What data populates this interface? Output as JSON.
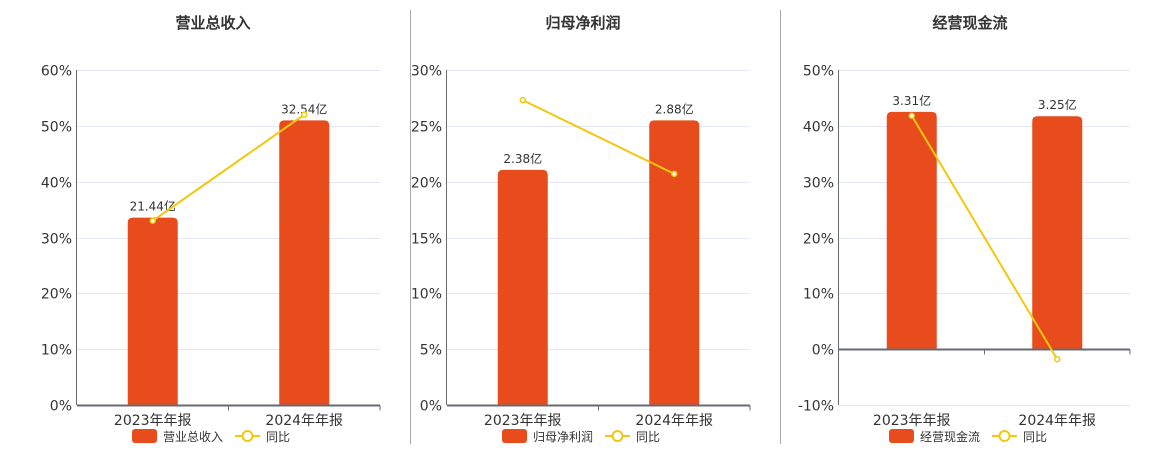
{
  "colors": {
    "bar": "#e84c1c",
    "line": "#f2c80f",
    "grid": "#e3e8f2",
    "axis": "#666a73",
    "text": "#333333",
    "divider": "#aaaaaa"
  },
  "chart_data": [
    {
      "type": "bar+line",
      "title": "营业总收入",
      "categories": [
        "2023年年报",
        "2024年年报"
      ],
      "bar_series": {
        "name": "营业总收入",
        "values": [
          21.44,
          32.54
        ],
        "labels": [
          "21.44亿",
          "32.54亿"
        ],
        "unit": "亿"
      },
      "line_series": {
        "name": "同比",
        "values": [
          33.0,
          52.0
        ],
        "unit": "%"
      },
      "ylim": [
        0,
        60
      ],
      "yticks": [
        "0%",
        "10%",
        "20%",
        "30%",
        "40%",
        "50%",
        "60%"
      ],
      "grid": true,
      "legend": "bottom"
    },
    {
      "type": "bar+line",
      "title": "归母净利润",
      "categories": [
        "2023年年报",
        "2024年年报"
      ],
      "bar_series": {
        "name": "归母净利润",
        "values": [
          2.38,
          2.88
        ],
        "labels": [
          "2.38亿",
          "2.88亿"
        ],
        "unit": "亿"
      },
      "line_series": {
        "name": "同比",
        "values": [
          27.3,
          20.7
        ],
        "unit": "%"
      },
      "ylim": [
        0,
        30
      ],
      "yticks": [
        "0%",
        "5%",
        "10%",
        "15%",
        "20%",
        "25%",
        "30%"
      ],
      "grid": true,
      "legend": "bottom"
    },
    {
      "type": "bar+line",
      "title": "经营现金流",
      "categories": [
        "2023年年报",
        "2024年年报"
      ],
      "bar_series": {
        "name": "经营现金流",
        "values": [
          3.31,
          3.25
        ],
        "labels": [
          "3.31亿",
          "3.25亿"
        ],
        "unit": "亿"
      },
      "line_series": {
        "name": "同比",
        "values": [
          41.8,
          -1.8
        ],
        "unit": "%"
      },
      "ylim": [
        -10,
        50
      ],
      "yticks": [
        "-10%",
        "0%",
        "10%",
        "20%",
        "30%",
        "40%",
        "50%"
      ],
      "grid": true,
      "legend": "bottom"
    }
  ]
}
